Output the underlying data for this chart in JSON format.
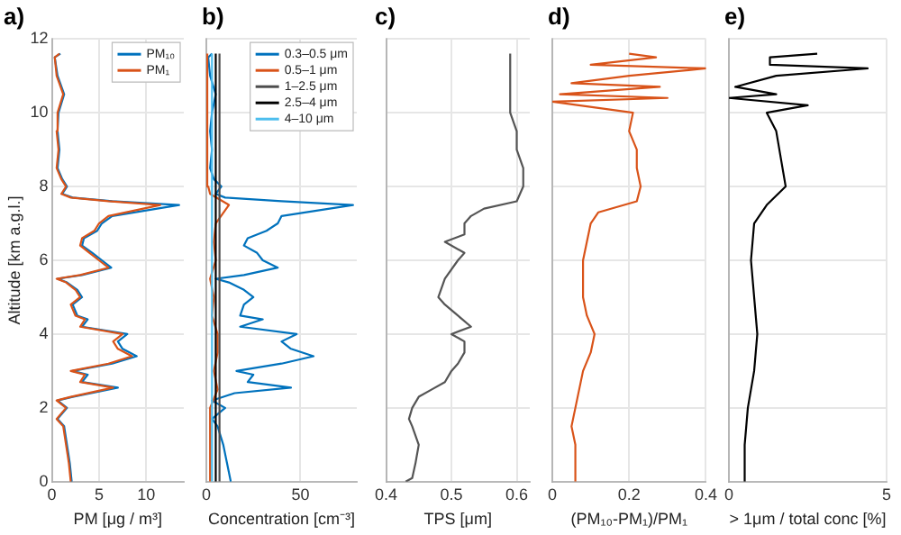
{
  "chart_data": [
    {
      "type": "line",
      "title": "a)",
      "xlabel": "PM [μg / m³]",
      "ylabel": "Altitude [km a.g.l.]",
      "xlim": [
        0,
        14
      ],
      "xticks": [
        0,
        5,
        10
      ],
      "ylim": [
        0,
        12
      ],
      "yticks": [
        0,
        2,
        4,
        6,
        8,
        10,
        12
      ],
      "grid": true,
      "legend": "top right",
      "marker": "none",
      "line_style": "solid",
      "series": [
        {
          "name": "PM₁₀",
          "color": "#0072bd",
          "x": [
            2.1,
            1.9,
            1.6,
            1.3,
            0.6,
            1.6,
            0.6,
            2.2,
            7,
            3.2,
            3.8,
            2.2,
            6.4,
            9,
            7.5,
            7,
            8,
            3.2,
            3.8,
            2.7,
            2.2,
            3.2,
            2.7,
            1.6,
            0.6,
            3.2,
            6.3,
            5.3,
            4.3,
            3.2,
            3.4,
            4.8,
            5.3,
            6.4,
            13.5,
            6.4,
            2.2,
            1.1,
            1.6,
            1.1,
            0.6,
            0.8,
            0.6,
            0.7,
            1.3,
            0.6,
            0.3,
            0.9
          ],
          "values": [
            0,
            0.5,
            1,
            1.5,
            1.7,
            2,
            2.2,
            2.3,
            2.55,
            2.7,
            2.9,
            3,
            3.2,
            3.4,
            3.6,
            3.8,
            4,
            4.2,
            4.4,
            4.5,
            4.8,
            5,
            5.2,
            5.4,
            5.5,
            5.6,
            5.8,
            6,
            6.2,
            6.4,
            6.6,
            6.8,
            7,
            7.2,
            7.5,
            7.6,
            7.7,
            7.8,
            8,
            8.2,
            8.5,
            9,
            9.5,
            10,
            10.5,
            11,
            11.5,
            11.6
          ]
        },
        {
          "name": "PM₁",
          "color": "#d95319",
          "x": [
            2,
            1.8,
            1.5,
            1.2,
            0.5,
            1.5,
            0.5,
            2,
            6.5,
            3,
            3.5,
            2,
            6,
            8.5,
            7,
            6.5,
            7.5,
            3,
            3.5,
            2.5,
            2,
            3,
            2.5,
            1.5,
            0.5,
            3,
            6,
            5,
            4,
            3,
            3.2,
            4.5,
            5,
            6,
            11.5,
            6,
            2,
            1,
            1.5,
            1,
            0.5,
            0.7,
            0.5,
            0.6,
            1.2,
            0.5,
            0.3,
            0.8
          ],
          "values": [
            0,
            0.5,
            1,
            1.5,
            1.7,
            2,
            2.2,
            2.3,
            2.55,
            2.7,
            2.9,
            3,
            3.2,
            3.4,
            3.6,
            3.8,
            4,
            4.2,
            4.4,
            4.5,
            4.8,
            5,
            5.2,
            5.4,
            5.5,
            5.6,
            5.8,
            6,
            6.2,
            6.4,
            6.6,
            6.8,
            7,
            7.2,
            7.5,
            7.6,
            7.7,
            7.8,
            8,
            8.2,
            8.5,
            9,
            9.5,
            10,
            10.5,
            11,
            11.5,
            11.6
          ]
        }
      ]
    },
    {
      "type": "line",
      "title": "b)",
      "xlabel": "Concentration [cm⁻³]",
      "xlim": [
        0,
        80
      ],
      "xticks": [
        0,
        50
      ],
      "ylim": [
        0,
        12
      ],
      "yticks": [
        0,
        2,
        4,
        6,
        8,
        10,
        12
      ],
      "tick_labels": "x",
      "grid": true,
      "legend": "top right",
      "marker": "none",
      "line_style": "solid",
      "series": [
        {
          "name": "0.3–0.5 μm",
          "color": "#0072bd",
          "x": [
            13,
            11,
            9,
            6,
            3,
            10,
            3,
            15,
            45,
            22,
            25,
            16,
            40,
            57,
            45,
            40,
            48,
            18,
            30,
            18,
            20,
            25,
            20,
            12,
            5,
            20,
            38,
            30,
            27,
            20,
            22,
            32,
            38,
            40,
            78,
            40,
            10,
            5,
            8,
            4,
            2,
            3,
            2,
            3,
            5,
            2,
            1,
            3
          ],
          "values": [
            0,
            0.5,
            1,
            1.5,
            1.7,
            2,
            2.2,
            2.4,
            2.55,
            2.7,
            2.9,
            3,
            3.2,
            3.4,
            3.6,
            3.8,
            4,
            4.2,
            4.4,
            4.5,
            4.8,
            5,
            5.2,
            5.4,
            5.5,
            5.6,
            5.8,
            6,
            6.2,
            6.4,
            6.6,
            6.8,
            7,
            7.2,
            7.5,
            7.6,
            7.7,
            7.8,
            8,
            8.2,
            8.5,
            9,
            9.5,
            10,
            10.5,
            11,
            11.5,
            11.6
          ]
        },
        {
          "name": "0.5–1 μm",
          "color": "#d95319",
          "x": [
            2,
            2,
            2,
            6,
            4,
            6,
            6,
            3,
            4,
            2,
            5,
            4,
            5,
            12,
            2,
            1,
            0.5,
            0.5,
            0.5,
            0.5
          ],
          "values": [
            0,
            1,
            2,
            2.5,
            3,
            3.5,
            4,
            4.5,
            5,
            5.5,
            6,
            6.5,
            7,
            7.5,
            7.8,
            8,
            9,
            10,
            11,
            11.6
          ]
        },
        {
          "name": "1–2.5 μm",
          "color": "#4d4d4d",
          "x": [
            7,
            7,
            7
          ],
          "values": [
            0,
            6,
            11.6
          ]
        },
        {
          "name": "2.5–4 μm",
          "color": "#000000",
          "x": [
            5,
            5,
            5
          ],
          "values": [
            0,
            6,
            11.6
          ]
        },
        {
          "name": "4–10 μm",
          "color": "#4dbeee",
          "x": [
            3,
            3,
            3
          ],
          "values": [
            0,
            6,
            11.6
          ]
        }
      ]
    },
    {
      "type": "line",
      "title": "c)",
      "xlabel": "TPS [μm]",
      "xlim": [
        0.4,
        0.62
      ],
      "xticks": [
        0.4,
        0.5,
        0.6
      ],
      "ylim": [
        0,
        12
      ],
      "yticks": [
        0,
        2,
        4,
        6,
        8,
        10,
        12
      ],
      "tick_labels": "x",
      "grid": true,
      "marker": "none",
      "line_style": "solid",
      "series": [
        {
          "color": "#555555",
          "x": [
            0.43,
            0.44,
            0.445,
            0.45,
            0.44,
            0.435,
            0.44,
            0.45,
            0.47,
            0.49,
            0.5,
            0.51,
            0.52,
            0.52,
            0.5,
            0.53,
            0.51,
            0.49,
            0.48,
            0.49,
            0.51,
            0.52,
            0.49,
            0.52,
            0.52,
            0.53,
            0.55,
            0.6,
            0.61,
            0.61,
            0.6,
            0.6,
            0.59,
            0.59
          ],
          "values": [
            0,
            0.1,
            0.5,
            1,
            1.5,
            1.7,
            2,
            2.3,
            2.5,
            2.7,
            3,
            3.2,
            3.5,
            3.8,
            4,
            4.2,
            4.5,
            4.8,
            5,
            5.5,
            6,
            6.2,
            6.5,
            6.7,
            7,
            7.2,
            7.4,
            7.6,
            8,
            8.5,
            9,
            9.5,
            10,
            11.6
          ]
        }
      ]
    },
    {
      "type": "line",
      "title": "d)",
      "xlabel": "(PM₁₀-PM₁)/PM₁",
      "xlim": [
        0,
        0.4
      ],
      "xticks": [
        0,
        0.2,
        0.4
      ],
      "ylim": [
        0,
        12
      ],
      "yticks": [
        0,
        2,
        4,
        6,
        8,
        10,
        12
      ],
      "tick_labels": "x",
      "grid": true,
      "marker": "none",
      "line_style": "solid",
      "series": [
        {
          "color": "#d95319",
          "x": [
            0.06,
            0.06,
            0.05,
            0.06,
            0.07,
            0.08,
            0.1,
            0.11,
            0.09,
            0.08,
            0.08,
            0.09,
            0.1,
            0.12,
            0.22,
            0.23,
            0.22,
            0.22,
            0.2,
            0.21,
            0.0,
            0.3,
            0.02,
            0.28,
            0.05,
            0.2,
            0.4,
            0.1,
            0.27,
            0.2
          ],
          "values": [
            0,
            1,
            1.5,
            2,
            2.5,
            3,
            3.5,
            4,
            4.5,
            5,
            6,
            6.5,
            7,
            7.3,
            7.6,
            8,
            8.5,
            9,
            9.5,
            10,
            10.3,
            10.4,
            10.5,
            10.7,
            10.8,
            11,
            11.2,
            11.3,
            11.5,
            11.6
          ]
        }
      ]
    },
    {
      "type": "line",
      "title": "e)",
      "xlabel": "> 1μm / total conc [%]",
      "xlim": [
        0,
        5
      ],
      "xticks": [
        0,
        5
      ],
      "ylim": [
        0,
        12
      ],
      "yticks": [
        0,
        2,
        4,
        6,
        8,
        10,
        12
      ],
      "tick_labels": "x",
      "grid": true,
      "marker": "none",
      "line_style": "solid",
      "series": [
        {
          "color": "#000000",
          "x": [
            0.5,
            0.5,
            0.6,
            0.8,
            0.9,
            0.8,
            0.7,
            0.8,
            1.2,
            1.8,
            1.6,
            1.5,
            1.2,
            2.5,
            0,
            1.5,
            0.2,
            1.5,
            4.4,
            1.3,
            1.3,
            2.8
          ],
          "values": [
            0,
            1,
            2,
            3,
            4,
            5,
            6,
            7,
            7.5,
            8,
            9,
            9.5,
            10,
            10.2,
            10.4,
            10.5,
            10.7,
            11,
            11.2,
            11.3,
            11.5,
            11.6
          ]
        }
      ]
    }
  ]
}
